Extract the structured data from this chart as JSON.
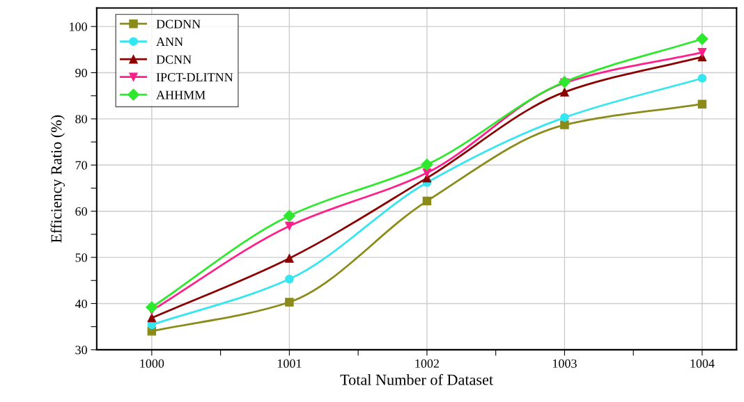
{
  "chart_data": {
    "type": "line",
    "xlabel": "Total Number of Dataset",
    "ylabel": "Efficiency Ratio (%)",
    "x": [
      1000,
      1001,
      1002,
      1003,
      1004
    ],
    "series": [
      {
        "name": "DCDNN",
        "color": "#8b8b1a",
        "marker": "square",
        "values": [
          34.0,
          40.3,
          62.2,
          78.7,
          83.2
        ]
      },
      {
        "name": "ANN",
        "color": "#33e6f0",
        "marker": "circle",
        "values": [
          35.4,
          45.3,
          66.2,
          80.3,
          88.8
        ]
      },
      {
        "name": "DCNN",
        "color": "#8b0000",
        "marker": "triangle",
        "values": [
          36.9,
          49.8,
          67.2,
          85.8,
          93.4
        ]
      },
      {
        "name": "IPCT-DLITNN",
        "color": "#ff1f8a",
        "marker": "triangle_down",
        "values": [
          38.5,
          56.8,
          68.3,
          87.8,
          94.4
        ]
      },
      {
        "name": "AHHMM",
        "color": "#2ee82e",
        "marker": "diamond",
        "values": [
          39.2,
          59.0,
          70.1,
          88.0,
          97.3
        ]
      }
    ],
    "xlim": [
      999.6,
      1004.25
    ],
    "xticks": [
      1000,
      {
        "value": 1000.5,
        "label": null
      },
      1001,
      {
        "value": 1001.5,
        "label": null
      },
      1002,
      {
        "value": 1002.5,
        "label": null
      },
      1003,
      {
        "value": 1003.5,
        "label": null
      },
      1004
    ],
    "ylim": [
      30,
      104
    ],
    "yticks": [
      30,
      {
        "value": 35,
        "label": null
      },
      40,
      {
        "value": 45,
        "label": null
      },
      50,
      {
        "value": 55,
        "label": null
      },
      60,
      {
        "value": 65,
        "label": null
      },
      70,
      {
        "value": 75,
        "label": null
      },
      80,
      {
        "value": 85,
        "label": null
      },
      90,
      {
        "value": 95,
        "label": null
      },
      100
    ],
    "grid": true,
    "legend": "top left",
    "line_style": "solid"
  }
}
